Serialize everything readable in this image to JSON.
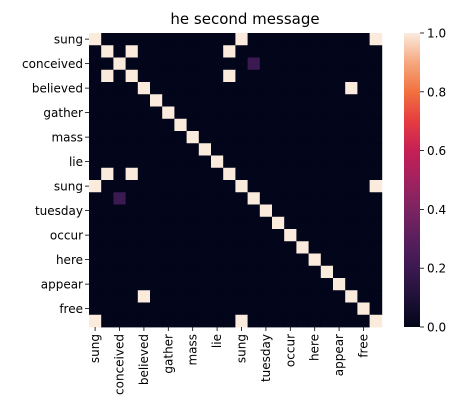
{
  "chart_data": {
    "type": "heatmap",
    "title": "he second message",
    "labels": [
      "sung",
      "",
      "conceived",
      "",
      "believed",
      "",
      "gather",
      "",
      "mass",
      "",
      "lie",
      "",
      "sung",
      "",
      "tuesday",
      "",
      "occur",
      "",
      "here",
      "",
      "appear",
      "",
      "free",
      ""
    ],
    "matrix": [
      [
        1,
        0,
        0,
        0,
        0,
        0,
        0,
        0,
        0,
        0,
        0,
        0,
        1,
        0,
        0,
        0,
        0,
        0,
        0,
        0,
        0,
        0,
        0,
        1
      ],
      [
        0,
        1,
        0,
        1,
        0,
        0,
        0,
        0,
        0,
        0,
        0,
        1,
        0,
        0,
        0,
        0,
        0,
        0,
        0,
        0,
        0,
        0,
        0,
        0
      ],
      [
        0,
        0,
        1,
        0,
        0,
        0,
        0,
        0,
        0,
        0,
        0,
        0,
        0,
        0.2,
        0,
        0,
        0,
        0,
        0,
        0,
        0,
        0,
        0,
        0
      ],
      [
        0,
        1,
        0,
        1,
        0,
        0,
        0,
        0,
        0,
        0,
        0,
        1,
        0,
        0,
        0,
        0,
        0,
        0,
        0,
        0,
        0,
        0,
        0,
        0
      ],
      [
        0,
        0,
        0,
        0,
        1,
        0,
        0,
        0,
        0,
        0,
        0,
        0,
        0,
        0,
        0,
        0,
        0,
        0,
        0,
        0,
        0,
        1,
        0,
        0
      ],
      [
        0,
        0,
        0,
        0,
        0,
        1,
        0,
        0,
        0,
        0,
        0,
        0,
        0,
        0,
        0,
        0,
        0,
        0,
        0,
        0,
        0,
        0,
        0,
        0
      ],
      [
        0,
        0,
        0,
        0,
        0,
        0,
        1,
        0,
        0,
        0,
        0,
        0,
        0,
        0,
        0,
        0,
        0,
        0,
        0,
        0,
        0,
        0,
        0,
        0
      ],
      [
        0,
        0,
        0,
        0,
        0,
        0,
        0,
        1,
        0,
        0,
        0,
        0,
        0,
        0,
        0,
        0,
        0,
        0,
        0,
        0,
        0,
        0,
        0,
        0
      ],
      [
        0,
        0,
        0,
        0,
        0,
        0,
        0,
        0,
        1,
        0,
        0,
        0,
        0,
        0,
        0,
        0,
        0,
        0,
        0,
        0,
        0,
        0,
        0,
        0
      ],
      [
        0,
        0,
        0,
        0,
        0,
        0,
        0,
        0,
        0,
        1,
        0,
        0,
        0,
        0,
        0,
        0,
        0,
        0,
        0,
        0,
        0,
        0,
        0,
        0
      ],
      [
        0,
        0,
        0,
        0,
        0,
        0,
        0,
        0,
        0,
        0,
        1,
        0,
        0,
        0,
        0,
        0,
        0,
        0,
        0,
        0,
        0,
        0,
        0,
        0
      ],
      [
        0,
        1,
        0,
        1,
        0,
        0,
        0,
        0,
        0,
        0,
        0,
        1,
        0,
        0,
        0,
        0,
        0,
        0,
        0,
        0,
        0,
        0,
        0,
        0
      ],
      [
        1,
        0,
        0,
        0,
        0,
        0,
        0,
        0,
        0,
        0,
        0,
        0,
        1,
        0,
        0,
        0,
        0,
        0,
        0,
        0,
        0,
        0,
        0,
        1
      ],
      [
        0,
        0,
        0.2,
        0,
        0,
        0,
        0,
        0,
        0,
        0,
        0,
        0,
        0,
        1,
        0,
        0,
        0,
        0,
        0,
        0,
        0,
        0,
        0,
        0
      ],
      [
        0,
        0,
        0,
        0,
        0,
        0,
        0,
        0,
        0,
        0,
        0,
        0,
        0,
        0,
        1,
        0,
        0,
        0,
        0,
        0,
        0,
        0,
        0,
        0
      ],
      [
        0,
        0,
        0,
        0,
        0,
        0,
        0,
        0,
        0,
        0,
        0,
        0,
        0,
        0,
        0,
        1,
        0,
        0,
        0,
        0,
        0,
        0,
        0,
        0
      ],
      [
        0,
        0,
        0,
        0,
        0,
        0,
        0,
        0,
        0,
        0,
        0,
        0,
        0,
        0,
        0,
        0,
        1,
        0,
        0,
        0,
        0,
        0,
        0,
        0
      ],
      [
        0,
        0,
        0,
        0,
        0,
        0,
        0,
        0,
        0,
        0,
        0,
        0,
        0,
        0,
        0,
        0,
        0,
        1,
        0,
        0,
        0,
        0,
        0,
        0
      ],
      [
        0,
        0,
        0,
        0,
        0,
        0,
        0,
        0,
        0,
        0,
        0,
        0,
        0,
        0,
        0,
        0,
        0,
        0,
        1,
        0,
        0,
        0,
        0,
        0
      ],
      [
        0,
        0,
        0,
        0,
        0,
        0,
        0,
        0,
        0,
        0,
        0,
        0,
        0,
        0,
        0,
        0,
        0,
        0,
        0,
        1,
        0,
        0,
        0,
        0
      ],
      [
        0,
        0,
        0,
        0,
        0,
        0,
        0,
        0,
        0,
        0,
        0,
        0,
        0,
        0,
        0,
        0,
        0,
        0,
        0,
        0,
        1,
        0,
        0,
        0
      ],
      [
        0,
        0,
        0,
        0,
        1,
        0,
        0,
        0,
        0,
        0,
        0,
        0,
        0,
        0,
        0,
        0,
        0,
        0,
        0,
        0,
        0,
        1,
        0,
        0
      ],
      [
        0,
        0,
        0,
        0,
        0,
        0,
        0,
        0,
        0,
        0,
        0,
        0,
        0,
        0,
        0,
        0,
        0,
        0,
        0,
        0,
        0,
        0,
        1,
        0
      ],
      [
        1,
        0,
        0,
        0,
        0,
        0,
        0,
        0,
        0,
        0,
        0,
        0,
        1,
        0,
        0,
        0,
        0,
        0,
        0,
        0,
        0,
        0,
        0,
        1
      ]
    ],
    "colorbar": {
      "range": [
        0,
        1
      ],
      "ticks": [
        "0.0",
        "0.2",
        "0.4",
        "0.6",
        "0.8",
        "1.0"
      ],
      "colormap": "rocket"
    },
    "grid": false
  }
}
